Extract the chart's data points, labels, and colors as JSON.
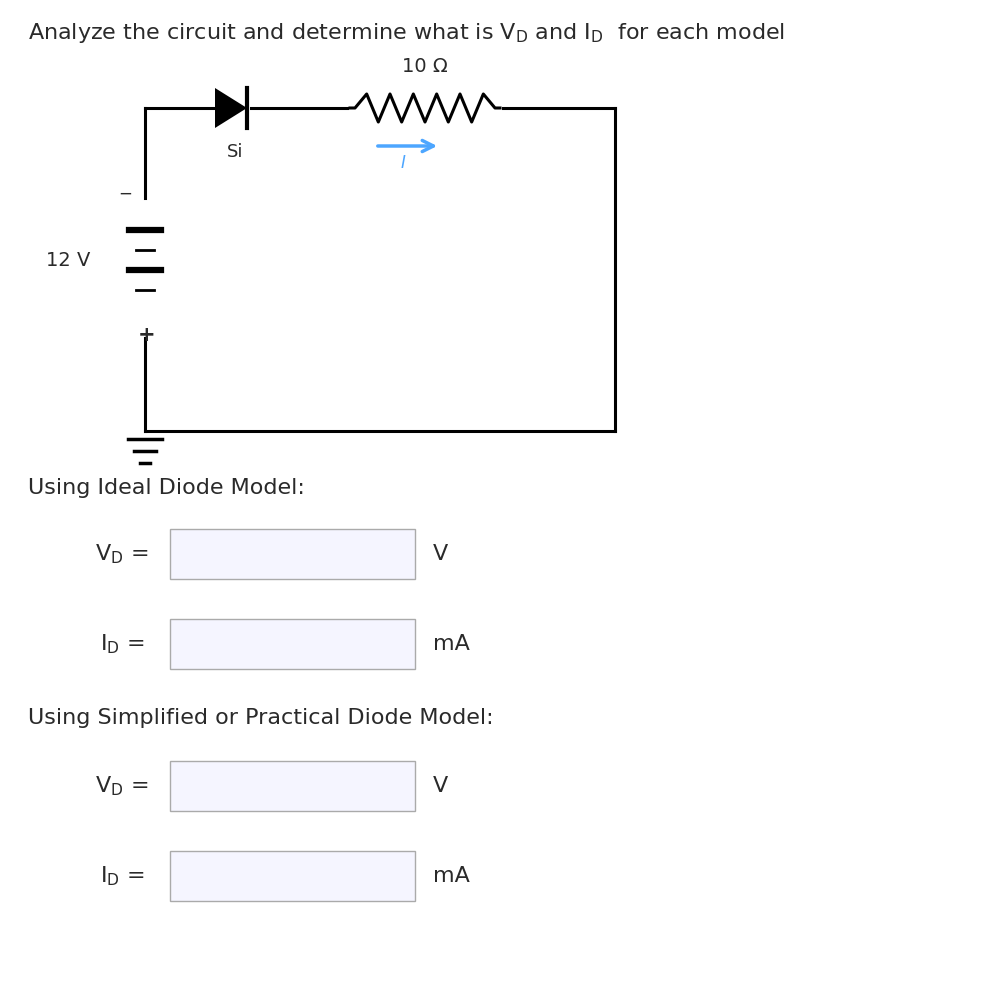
{
  "bg_color": "#ffffff",
  "text_color": "#2a2a2a",
  "circuit": {
    "resistor_label": "10 Ω",
    "voltage_label": "12 V",
    "diode_label": "Si",
    "current_color": "#4da6ff"
  },
  "section1_label": "Using Ideal Diode Model:",
  "section2_label": "Using Simplified or Practical Diode Model:",
  "v_unit": "V",
  "i_unit": "mA",
  "box_facecolor": "#f5f5ff",
  "box_edgecolor": "#aaaaaa"
}
